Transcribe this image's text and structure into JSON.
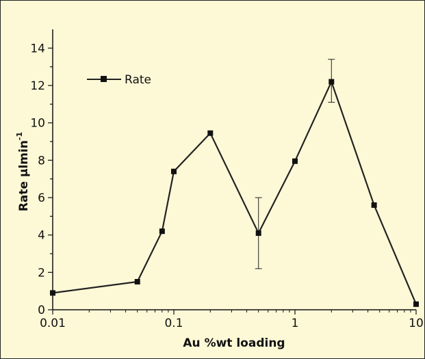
{
  "chart_data": {
    "type": "line",
    "xlabel": "Au %wt loading",
    "ylabel": "Rate µlmin",
    "ylabel_superscript": "-1",
    "xscale": "log",
    "xlim": [
      0.01,
      10
    ],
    "ylim": [
      0,
      15
    ],
    "x_tick_labels": [
      "0.01",
      "0.1",
      "1",
      "10"
    ],
    "y_tick_labels": [
      "0",
      "2",
      "4",
      "6",
      "8",
      "10",
      "12",
      "14"
    ],
    "grid": false,
    "legend_position": "top-left",
    "series": [
      {
        "name": "Rate",
        "color": "#222222",
        "marker": "square",
        "x": [
          0.01,
          0.05,
          0.08,
          0.1,
          0.2,
          0.5,
          1,
          2,
          4.5,
          10
        ],
        "y": [
          0.9,
          1.5,
          4.2,
          7.4,
          9.45,
          4.1,
          7.95,
          12.2,
          5.6,
          0.3
        ],
        "error_bars": [
          {
            "x": 0.5,
            "low": 2.2,
            "high": 6.0
          },
          {
            "x": 2,
            "low": 11.1,
            "high": 13.4
          }
        ]
      }
    ]
  }
}
